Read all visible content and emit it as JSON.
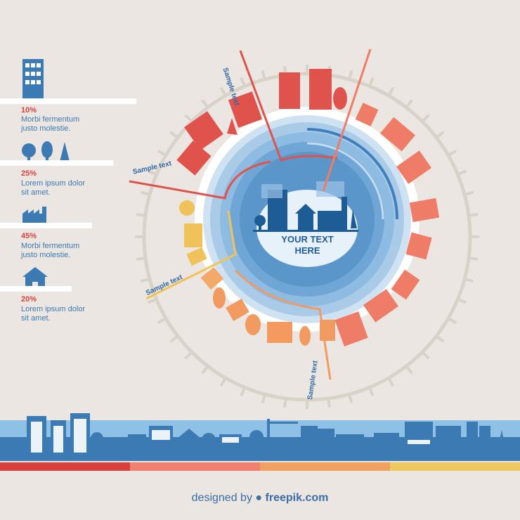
{
  "center": {
    "line1": "YOUR TEXT",
    "line2": "HERE"
  },
  "legend": [
    {
      "percent": "10%",
      "line1": "Morbi fermentum",
      "line2": "justo molestie.",
      "icon": "office-building-icon"
    },
    {
      "percent": "25%",
      "line1": "Lorem ipsum dolor",
      "line2": "sit amet.",
      "icon": "trees-icon"
    },
    {
      "percent": "45%",
      "line1": "Morbi fermentum",
      "line2": "justo molestie.",
      "icon": "factory-icon"
    },
    {
      "percent": "20%",
      "line1": "Lorem ipsum dolor",
      "line2": "sit amet.",
      "icon": "house-icon"
    }
  ],
  "callouts": [
    "Sample text",
    "Sample text",
    "Sample text",
    "Sample text"
  ],
  "footer": {
    "designed_by": "designed by",
    "brand": "freepik.com"
  },
  "colors": {
    "background": "#ebe6e1",
    "blue": "#3b7ab3",
    "dark_blue": "#1e5c95",
    "red": "#d9423c",
    "salmon": "#f08070",
    "orange": "#f0a060",
    "yellow": "#f0c860",
    "ring": "#d9d2c8"
  }
}
